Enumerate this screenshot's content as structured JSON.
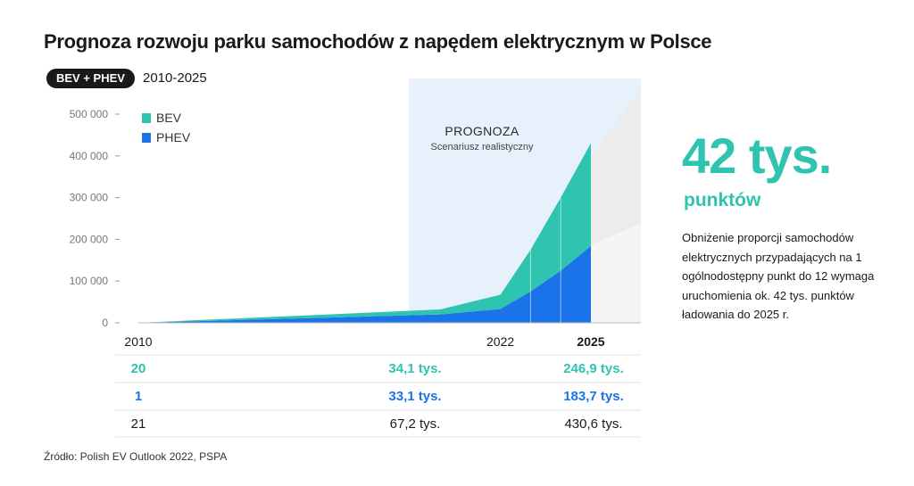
{
  "title": "Prognoza rozwoju parku samochodów z napędem elektrycznym w Polsce",
  "badge": "BEV + PHEV",
  "period": "2010-2025",
  "chart_data": {
    "type": "area",
    "stacked": true,
    "x": [
      2010,
      2020,
      2022,
      2023,
      2024,
      2025
    ],
    "x_ticks": [
      "2010",
      "2022",
      "2025"
    ],
    "y_ticks": [
      "0",
      "100 000",
      "200 000",
      "300 000",
      "400 000",
      "500 000"
    ],
    "ylim": [
      0,
      500000
    ],
    "grid": false,
    "legend_position": "top-left",
    "series": [
      {
        "name": "PHEV",
        "color": "#1a73e8",
        "values": [
          1,
          20000,
          33100,
          75000,
          125000,
          183700
        ]
      },
      {
        "name": "BEV",
        "color": "#2ec4b0",
        "values": [
          20,
          12000,
          34100,
          100000,
          175000,
          246900
        ]
      }
    ],
    "legend": [
      {
        "name": "BEV",
        "color": "#2ec4b0"
      },
      {
        "name": "PHEV",
        "color": "#1a73e8"
      }
    ],
    "forecast": {
      "label": "PROGNOZA",
      "sublabel": "Scenariusz realistyczny",
      "from": 2022,
      "to": 2025
    },
    "table": {
      "columns": [
        "2010",
        "2022",
        "2025"
      ],
      "rows": [
        {
          "color": "#2ec4b0",
          "cells": [
            "20",
            "34,1 tys.",
            "246,9 tys."
          ]
        },
        {
          "color": "#1a73e8",
          "cells": [
            "1",
            "33,1 tys.",
            "183,7 tys."
          ]
        },
        {
          "color": "#1a1a1a",
          "cells": [
            "21",
            "67,2 tys.",
            "430,6 tys."
          ]
        }
      ]
    }
  },
  "callout": {
    "value": "42 tys.",
    "unit": "punktów",
    "text": "Obniżenie proporcji samochodów elektrycznych przypadających na 1 ogólnodostępny punkt do 12 wymaga uruchomienia ok. 42 tys. punktów ładowania do 2025 r."
  },
  "source": "Źródło: Polish EV Outlook 2022, PSPA"
}
